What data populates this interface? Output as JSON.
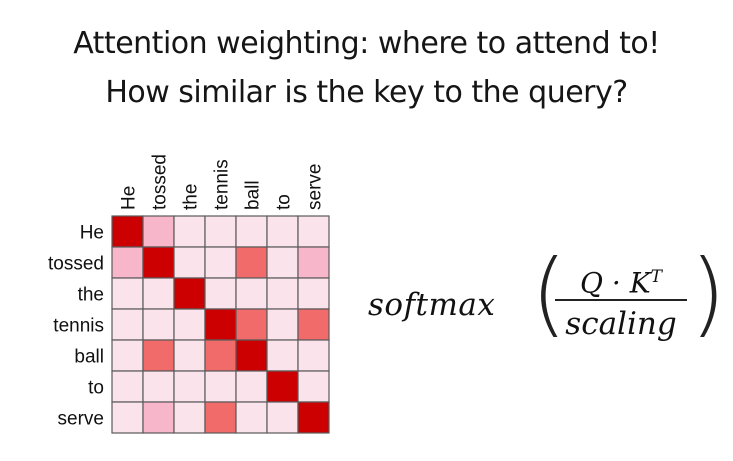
{
  "title_line1": "Attention weighting: where to attend to!",
  "title_line2": "How similar is the key to the query?",
  "words": [
    "He",
    "tossed",
    "the",
    "tennis",
    "ball",
    "to",
    "serve"
  ],
  "attention_weights": [
    [
      0.95,
      0.35,
      0.08,
      0.08,
      0.08,
      0.08,
      0.08
    ],
    [
      0.35,
      0.95,
      0.08,
      0.08,
      0.6,
      0.08,
      0.35
    ],
    [
      0.08,
      0.08,
      0.95,
      0.08,
      0.08,
      0.08,
      0.08
    ],
    [
      0.08,
      0.08,
      0.08,
      0.95,
      0.6,
      0.08,
      0.6
    ],
    [
      0.08,
      0.6,
      0.08,
      0.6,
      0.95,
      0.08,
      0.08
    ],
    [
      0.08,
      0.08,
      0.08,
      0.08,
      0.08,
      0.95,
      0.08
    ],
    [
      0.08,
      0.35,
      0.08,
      0.6,
      0.08,
      0.08,
      0.95
    ]
  ],
  "colors": {
    "low": "#fbe3ec",
    "mid": "#f8b6cb",
    "high": "#f26b6b",
    "max": "#cc0000"
  },
  "formula": {
    "function": "softmax",
    "left_paren": "(",
    "right_paren": ")",
    "numerator_base": "Q · K",
    "numerator_sup": "T",
    "denominator": "scaling"
  }
}
